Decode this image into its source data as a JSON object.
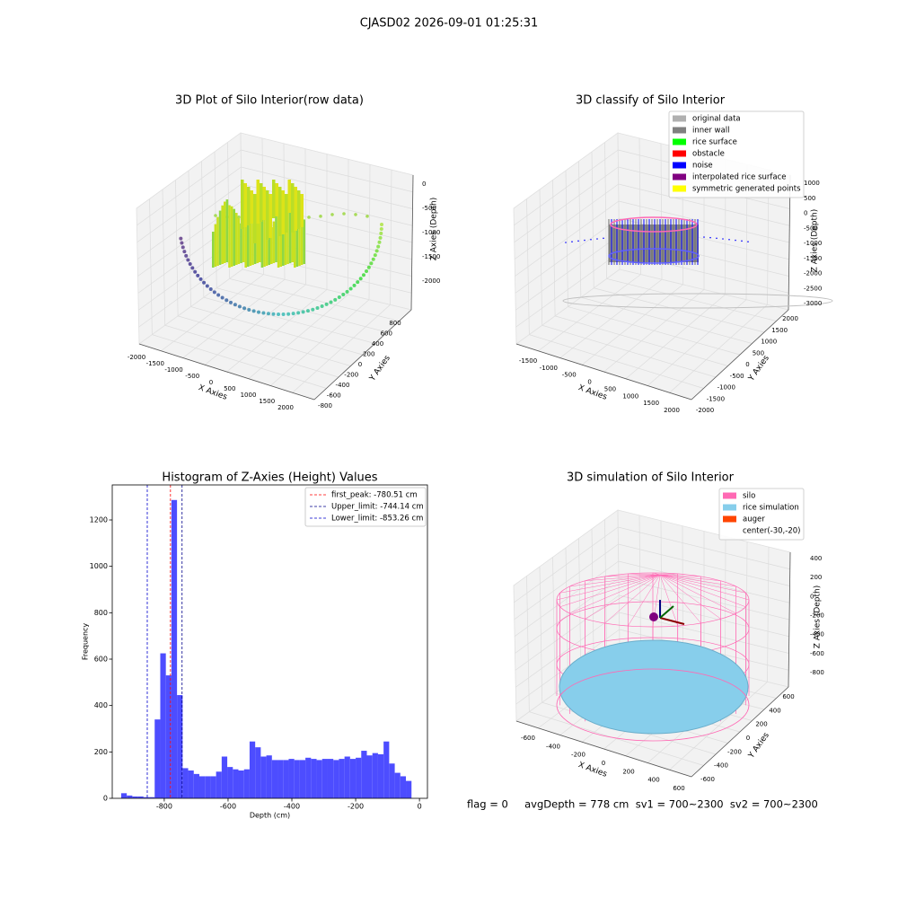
{
  "title": "CJASD02 2026-09-01 01:25:31",
  "status": "flag = 0     avgDepth = 778 cm  sv1 = 700~2300  sv2 = 700~2300",
  "chart_data": [
    {
      "type": "scatter3d",
      "title": "3D Plot of Silo Interior(row data)",
      "x_label": "X Axies",
      "y_label": "Y Axies",
      "z_label": "Z Axies (Depth)",
      "xticks": [
        -2000,
        -1500,
        -1000,
        -500,
        0,
        500,
        1000,
        1500,
        2000
      ],
      "yticks": [
        -800,
        -600,
        -400,
        -200,
        0,
        200,
        400,
        600,
        800
      ],
      "zticks": [
        0,
        -500,
        -1000,
        -1500,
        -2000
      ]
    },
    {
      "type": "scatter3d",
      "title": "3D classify of Silo Interior",
      "x_label": "X Axies",
      "y_label": "Y Axies",
      "z_label": "Z Axies (Depth)",
      "xticks": [
        -1500,
        -1000,
        -500,
        0,
        500,
        1000,
        1500,
        2000
      ],
      "yticks": [
        -2000,
        -1500,
        -1000,
        -500,
        0,
        500,
        1000,
        1500,
        2000
      ],
      "zticks": [
        1000,
        500,
        0,
        -500,
        -1000,
        -1500,
        -2000,
        -2500,
        -3000
      ],
      "legend": [
        {
          "name": "original data",
          "color": "#b0b0b0"
        },
        {
          "name": "inner wall",
          "color": "#808080"
        },
        {
          "name": "rice surface",
          "color": "#00ff00"
        },
        {
          "name": "obstacle",
          "color": "#ff0000"
        },
        {
          "name": "noise",
          "color": "#0000ff"
        },
        {
          "name": "interpolated rice surface",
          "color": "#800080"
        },
        {
          "name": "symmetric generated points",
          "color": "#ffff00"
        }
      ]
    },
    {
      "type": "histogram",
      "title": "Histogram of Z-Axies (Height) Values",
      "x_label": "Depth (cm)",
      "y_label": "Frequency",
      "color": "#4d4dff",
      "bins": [
        -935,
        -917.5,
        -900,
        -882.5,
        -865,
        -847.5,
        -830,
        -812.5,
        -795,
        -777.5,
        -760,
        -742.5,
        -725,
        -707.5,
        -690,
        -672.5,
        -655,
        -637.5,
        -620,
        -602.5,
        -585,
        -567.5,
        -550,
        -532.5,
        -515,
        -497.5,
        -480,
        -462.5,
        -445,
        -427.5,
        -410,
        -392.5,
        -375,
        -357.5,
        -340,
        -322.5,
        -305,
        -287.5,
        -270,
        -252.5,
        -235,
        -217.5,
        -200,
        -182.5,
        -165,
        -147.5,
        -130,
        -112.5,
        -95,
        -77.5,
        -60,
        -42.5,
        -25
      ],
      "values": [
        22,
        12,
        8,
        8,
        5,
        5,
        340,
        625,
        530,
        1286,
        445,
        130,
        120,
        105,
        95,
        95,
        95,
        115,
        180,
        135,
        125,
        120,
        125,
        245,
        220,
        180,
        185,
        165,
        165,
        165,
        170,
        165,
        165,
        175,
        170,
        165,
        170,
        170,
        165,
        170,
        180,
        170,
        175,
        205,
        185,
        195,
        190,
        245,
        150,
        110,
        95,
        75
      ],
      "lines": [
        {
          "label": "first_peak: -780.51 cm",
          "value": -780.51,
          "color": "#ff0000"
        },
        {
          "label": "Upper_limit: -744.14 cm",
          "value": -744.14,
          "color": "#00008b"
        },
        {
          "label": "Lower_limit: -853.26 cm",
          "value": -853.26,
          "color": "#0000cd"
        }
      ],
      "xlim": [
        -963,
        25
      ],
      "ylim": [
        0,
        1351
      ],
      "xticks": [
        -800,
        -600,
        -400,
        -200,
        0
      ],
      "yticks": [
        0,
        200,
        400,
        600,
        800,
        1000,
        1200
      ]
    },
    {
      "type": "surface3d",
      "title": "3D simulation of Silo Interior",
      "x_label": "X Axies",
      "y_label": "Y Axies",
      "z_label": "Z Axies (Depth)",
      "xticks": [
        -600,
        -400,
        -200,
        0,
        200,
        400,
        600
      ],
      "yticks": [
        -600,
        -400,
        -200,
        0,
        200,
        400,
        600
      ],
      "zticks": [
        400,
        200,
        0,
        -200,
        -400,
        -600,
        -800
      ],
      "legend": [
        {
          "name": "silo",
          "color": "#ff69b4"
        },
        {
          "name": "rice simulation",
          "color": "#87ceeb"
        },
        {
          "name": "auger",
          "color": "#ff4500"
        },
        {
          "name": "center(-30,-20)"
        }
      ]
    }
  ]
}
